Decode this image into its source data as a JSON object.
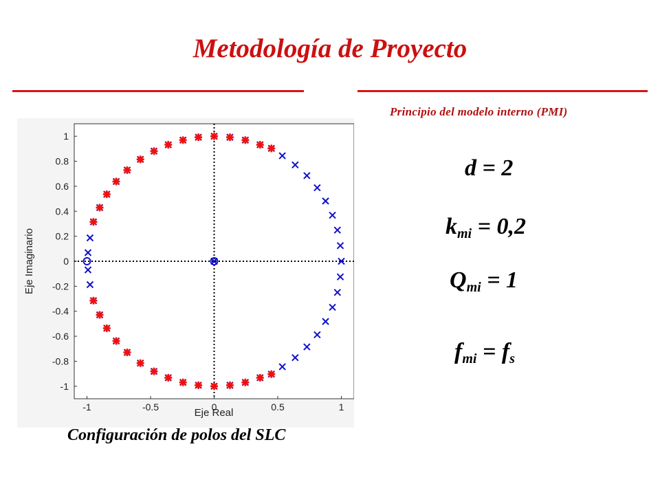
{
  "slide": {
    "title": "Metodología de Proyecto",
    "subtitle": "Principio del modelo interno (PMI)",
    "caption": "Configuración de polos del SLC",
    "colors": {
      "title": "#cc1010",
      "poles": "#1010cc",
      "zeros": "#ee1111"
    }
  },
  "equations": {
    "d": {
      "lhs": "d",
      "rhs": " = 2"
    },
    "k": {
      "base": "k",
      "sub": "mi",
      "rhs": " = 0,2"
    },
    "q": {
      "base": "Q",
      "sub": "mi",
      "rhs": " = 1"
    },
    "f": {
      "base": "f",
      "sub": "mi",
      "mid": " = f",
      "sub2": "s"
    }
  },
  "chart_data": {
    "type": "scatter",
    "xlabel": "Eje Real",
    "ylabel": "Eje Imaginario",
    "xlim": [
      -1.1,
      1.1
    ],
    "ylim": [
      -1.1,
      1.1
    ],
    "xticks": [
      "-1",
      "-0.5",
      "0",
      "0.5",
      "1"
    ],
    "yticks": [
      "1",
      "0.8",
      "0.6",
      "0.4",
      "0.2",
      "0",
      "-0.2",
      "-0.4",
      "-0.6",
      "-0.8",
      "-1"
    ],
    "grid": false,
    "reference_lines": [
      "x = 0 dotted",
      "y = 0 dotted"
    ],
    "series": [
      {
        "marker": "x",
        "color": "#1010cc",
        "points": [
          [
            1.0,
            0.0
          ],
          [
            0.992,
            0.125
          ],
          [
            0.969,
            0.249
          ],
          [
            0.93,
            0.368
          ],
          [
            0.876,
            0.482
          ],
          [
            0.81,
            0.588
          ],
          [
            0.729,
            0.685
          ],
          [
            0.637,
            0.771
          ],
          [
            0.536,
            0.844
          ],
          [
            0.992,
            -0.125
          ],
          [
            0.969,
            -0.249
          ],
          [
            0.93,
            -0.368
          ],
          [
            0.876,
            -0.482
          ],
          [
            0.81,
            -0.588
          ],
          [
            0.729,
            -0.685
          ],
          [
            0.637,
            -0.771
          ],
          [
            0.536,
            -0.844
          ],
          [
            -0.992,
            0.069
          ],
          [
            -0.992,
            -0.069
          ],
          [
            -0.976,
            0.187
          ],
          [
            -0.976,
            -0.187
          ],
          [
            0.0,
            0.0
          ]
        ]
      },
      {
        "marker": "x",
        "color": "#1010cc",
        "marker_overlay": "*",
        "overlay_color": "#ee1111",
        "points": [
          [
            0.0,
            1.0
          ],
          [
            0.124,
            0.992
          ],
          [
            0.245,
            0.969
          ],
          [
            0.361,
            0.932
          ],
          [
            0.45,
            0.903
          ],
          [
            -0.124,
            0.992
          ],
          [
            -0.245,
            0.969
          ],
          [
            -0.361,
            0.932
          ],
          [
            -0.473,
            0.881
          ],
          [
            -0.58,
            0.815
          ],
          [
            -0.684,
            0.729
          ],
          [
            -0.77,
            0.638
          ],
          [
            -0.844,
            0.536
          ],
          [
            -0.9,
            0.429
          ],
          [
            -0.949,
            0.315
          ],
          [
            0.0,
            -1.0
          ],
          [
            0.124,
            -0.992
          ],
          [
            0.245,
            -0.969
          ],
          [
            0.361,
            -0.932
          ],
          [
            0.45,
            -0.903
          ],
          [
            -0.124,
            -0.992
          ],
          [
            -0.245,
            -0.969
          ],
          [
            -0.361,
            -0.932
          ],
          [
            -0.473,
            -0.881
          ],
          [
            -0.58,
            -0.815
          ],
          [
            -0.684,
            -0.729
          ],
          [
            -0.77,
            -0.638
          ],
          [
            -0.844,
            -0.536
          ],
          [
            -0.9,
            -0.429
          ],
          [
            -0.949,
            -0.315
          ]
        ]
      },
      {
        "marker": "o",
        "color": "#1010cc",
        "points": [
          [
            -1.0,
            0.0
          ],
          [
            0.0,
            0.0
          ]
        ]
      }
    ]
  }
}
